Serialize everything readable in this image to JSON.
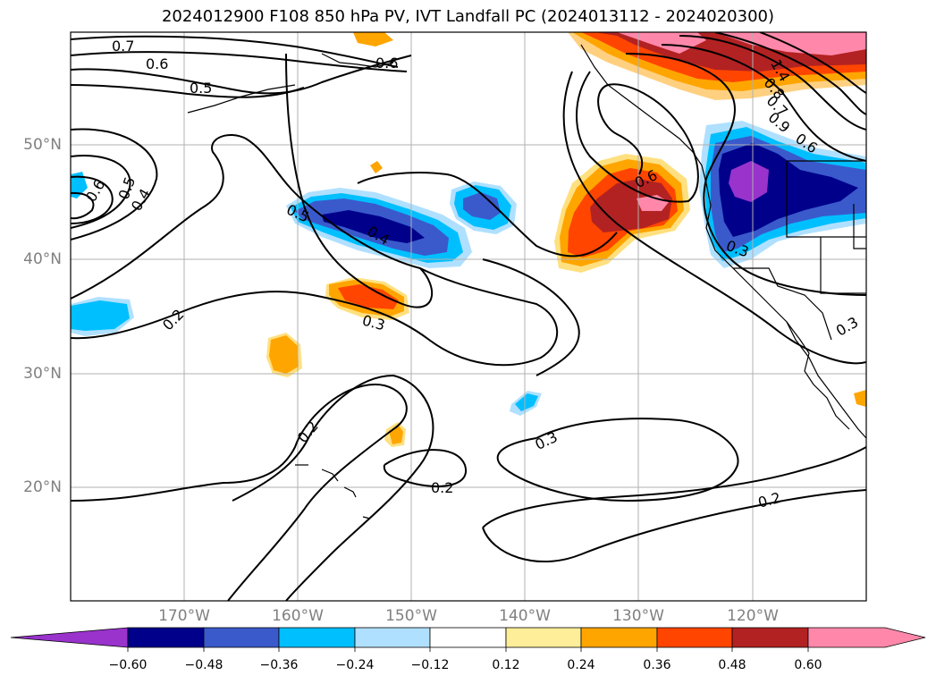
{
  "title": "2024012900 F108 850 hPa PV, IVT Landfall PC (2024013112 - 2024020300)",
  "latitude_labels": [
    "50°N",
    "40°N",
    "30°N",
    "20°N"
  ],
  "longitude_labels": [
    "170°W",
    "160°W",
    "150°W",
    "140°W",
    "130°W",
    "120°W"
  ],
  "contour_labels": [
    "0.7",
    "0.6",
    "0.6",
    "0.5",
    "0.6",
    "0.5",
    "0.4",
    "0.5",
    "0.4",
    "0.2",
    "0.3",
    "0.2",
    "0.2",
    "0.3",
    "0.6",
    "0.2",
    "1.4",
    "0.8",
    "0.7",
    "0.9",
    "0.6",
    "0.3",
    "0.3"
  ],
  "colorbar": {
    "ticks": [
      "−0.60",
      "−0.48",
      "−0.36",
      "−0.24",
      "−0.12",
      "0.12",
      "0.24",
      "0.36",
      "0.48",
      "0.60"
    ],
    "colors": [
      "#9933cc",
      "#00008b",
      "#3a5acc",
      "#00bfff",
      "#b0e0ff",
      "#ffffff",
      "#ffee99",
      "#ffa500",
      "#ff4500",
      "#b22222",
      "#ff88aa"
    ]
  }
}
